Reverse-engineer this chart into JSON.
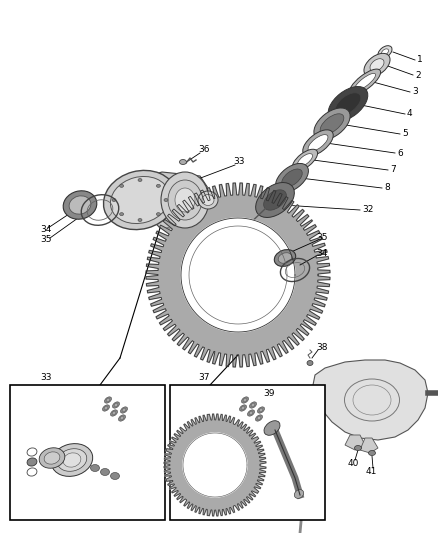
{
  "background_color": "#ffffff",
  "fig_width": 4.38,
  "fig_height": 5.33,
  "dpi": 100,
  "line_color": "#000000",
  "gray_dark": "#555555",
  "gray_mid": "#888888",
  "gray_light": "#bbbbbb",
  "gray_fill": "#cccccc",
  "white": "#ffffff"
}
